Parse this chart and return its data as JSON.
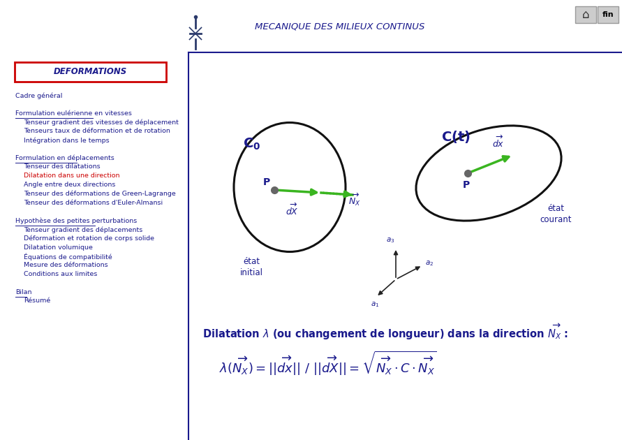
{
  "title": "MECANIQUE DES MILIEUX CONTINUS",
  "title_color": "#1a1a8c",
  "title_fontsize": 9.5,
  "bg_color": "#FFFFFF",
  "sidebar_line_color": "#1a1a8c",
  "deformations_box_text": "DEFORMATIONS",
  "deformations_box_color": "#CC0000",
  "deformations_text_color": "#1a1a8c",
  "menu_items": [
    {
      "text": "Cadre général",
      "underline": false,
      "color": "#1a1a8c",
      "indent": 0
    },
    {
      "text": "",
      "underline": false,
      "color": "#1a1a8c",
      "indent": 0
    },
    {
      "text": "Formulation eulérienne en vitesses",
      "underline": true,
      "color": "#1a1a8c",
      "indent": 0
    },
    {
      "text": "Tenseur gradient des vitesses de déplacement",
      "underline": false,
      "color": "#1a1a8c",
      "indent": 1
    },
    {
      "text": "Tenseurs taux de déformation et de rotation",
      "underline": false,
      "color": "#1a1a8c",
      "indent": 1
    },
    {
      "text": "Intégration dans le temps",
      "underline": false,
      "color": "#1a1a8c",
      "indent": 1
    },
    {
      "text": "",
      "underline": false,
      "color": "#1a1a8c",
      "indent": 0
    },
    {
      "text": "Formulation en déplacements",
      "underline": true,
      "color": "#1a1a8c",
      "indent": 0
    },
    {
      "text": "Tenseur des dilatations",
      "underline": false,
      "color": "#1a1a8c",
      "indent": 1
    },
    {
      "text": "Dilatation dans une direction",
      "underline": false,
      "color": "#CC0000",
      "indent": 1
    },
    {
      "text": "Angle entre deux directions",
      "underline": false,
      "color": "#1a1a8c",
      "indent": 1
    },
    {
      "text": "Tenseur des déformations de Green-Lagrange",
      "underline": false,
      "color": "#1a1a8c",
      "indent": 1
    },
    {
      "text": "Tenseur des déformations d'Euler-Almansi",
      "underline": false,
      "color": "#1a1a8c",
      "indent": 1
    },
    {
      "text": "",
      "underline": false,
      "color": "#1a1a8c",
      "indent": 0
    },
    {
      "text": "Hypothèse des petites perturbations",
      "underline": true,
      "color": "#1a1a8c",
      "indent": 0
    },
    {
      "text": "Tenseur gradient des déplacements",
      "underline": false,
      "color": "#1a1a8c",
      "indent": 1
    },
    {
      "text": "Déformation et rotation de corps solide",
      "underline": false,
      "color": "#1a1a8c",
      "indent": 1
    },
    {
      "text": "Dilatation volumique",
      "underline": false,
      "color": "#1a1a8c",
      "indent": 1
    },
    {
      "text": "Équations de compatibilité",
      "underline": false,
      "color": "#1a1a8c",
      "indent": 1
    },
    {
      "text": "Mesure des déformations",
      "underline": false,
      "color": "#1a1a8c",
      "indent": 1
    },
    {
      "text": "Conditions aux limites",
      "underline": false,
      "color": "#1a1a8c",
      "indent": 1
    },
    {
      "text": "",
      "underline": false,
      "color": "#1a1a8c",
      "indent": 0
    },
    {
      "text": "Bilan",
      "underline": true,
      "color": "#1a1a8c",
      "indent": 0
    },
    {
      "text": "Résumé",
      "underline": false,
      "color": "#1a1a8c",
      "indent": 1
    }
  ],
  "green": "#3ab520",
  "dark_green": "#2d8a10",
  "diagram_circle_color": "#111111",
  "diagram_text_color": "#1a1a8c",
  "formula_text_color": "#1a1a8c",
  "header_line_color": "#1a1a8c"
}
